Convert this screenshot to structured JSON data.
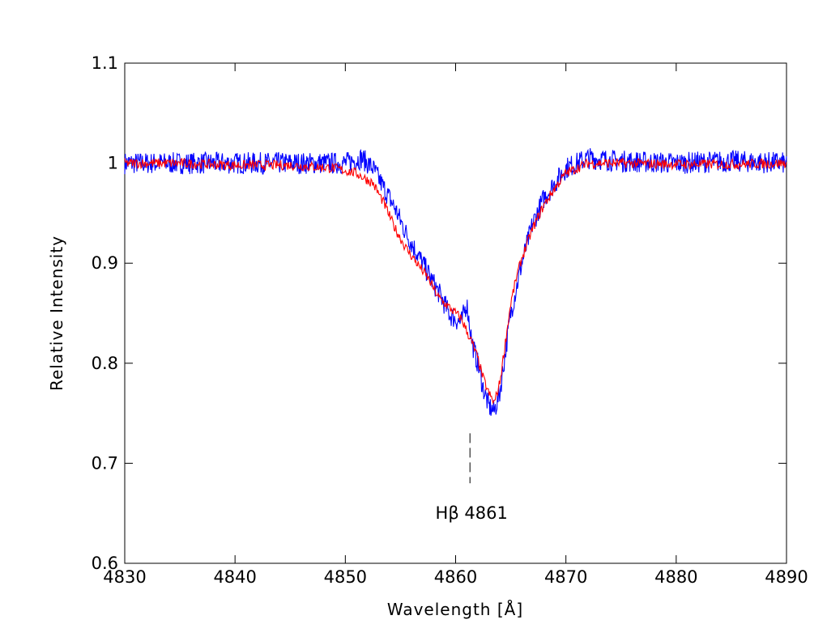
{
  "chart_data": {
    "type": "line",
    "xlabel": "Wavelength [Å]",
    "ylabel": "Relative Intensity",
    "xlim": [
      4830,
      4890
    ],
    "ylim": [
      0.6,
      1.1
    ],
    "xticks": [
      "4830",
      "4840",
      "4850",
      "4860",
      "4870",
      "4880",
      "4890"
    ],
    "yticks": [
      "0.6",
      "0.7",
      "0.8",
      "0.9",
      "1",
      "1.1"
    ],
    "grid": false,
    "legend": "none",
    "annotation": {
      "text": "Hβ 4861",
      "x": 4861.3,
      "marker_y": [
        0.68,
        0.73
      ]
    },
    "series": [
      {
        "color": "#0000ff",
        "x": [
          4830,
          4835,
          4840,
          4845,
          4850,
          4851.5,
          4852.5,
          4853.5,
          4854.5,
          4855.5,
          4856.5,
          4857.5,
          4858.5,
          4859.5,
          4860.5,
          4861,
          4861.5,
          4862,
          4862.5,
          4863,
          4863.5,
          4864,
          4864.5,
          4865,
          4865.5,
          4866,
          4867,
          4868,
          4869,
          4870,
          4872,
          4875,
          4880,
          4885,
          4890
        ],
        "y": [
          1.0,
          1.0,
          1.0,
          1.0,
          1.0,
          1.005,
          0.995,
          0.975,
          0.955,
          0.93,
          0.91,
          0.89,
          0.87,
          0.848,
          0.84,
          0.86,
          0.82,
          0.8,
          0.775,
          0.757,
          0.752,
          0.77,
          0.81,
          0.85,
          0.875,
          0.9,
          0.94,
          0.965,
          0.98,
          0.995,
          1.005,
          1.002,
          1.0,
          1.002,
          1.0
        ]
      },
      {
        "color": "#ff0000",
        "x": [
          4830,
          4835,
          4840,
          4845,
          4849,
          4851,
          4852.5,
          4853.5,
          4854.5,
          4855.5,
          4856.5,
          4857.5,
          4858.5,
          4859.5,
          4860.5,
          4861.5,
          4862,
          4862.5,
          4863,
          4863.5,
          4864,
          4864.5,
          4865,
          4865.5,
          4866,
          4867,
          4868,
          4869,
          4870,
          4872,
          4875,
          4880,
          4885,
          4890
        ],
        "y": [
          1.0,
          1.0,
          0.998,
          0.998,
          0.995,
          0.99,
          0.98,
          0.96,
          0.935,
          0.915,
          0.9,
          0.885,
          0.865,
          0.855,
          0.845,
          0.82,
          0.805,
          0.785,
          0.77,
          0.76,
          0.78,
          0.82,
          0.86,
          0.885,
          0.905,
          0.935,
          0.958,
          0.975,
          0.99,
          1.0,
          1.0,
          0.999,
          0.999,
          1.0
        ]
      }
    ]
  }
}
